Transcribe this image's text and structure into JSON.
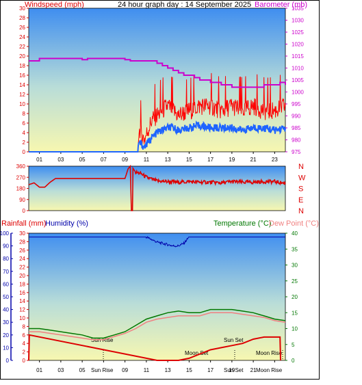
{
  "header": {
    "left_title": "Windspeed (mph)",
    "center_title": "24 hour graph day : 14 September 2025",
    "right_title": "Barometer (mb)"
  },
  "colors": {
    "wind": "#ff0000",
    "gust_fill": "#ff0000",
    "wind_avg": "#1e64ff",
    "barometer": "#cc00cc",
    "direction": "#dd0000",
    "humidity": "#0000aa",
    "temperature": "#007700",
    "dewpoint": "#f08080",
    "rainfall": "#dd0000",
    "bg_top": "#3f8ef0",
    "bg_bottom": "#f7f7b0"
  },
  "direction_labels": [
    "N",
    "W",
    "S",
    "E",
    "N"
  ],
  "bottom_header": {
    "rain_label": "Rainfall (mm)",
    "humidity_label": "Humidity (%)",
    "temp_label": "Temperature (°C)",
    "dew_label": "Dew Point (°C)"
  },
  "annotations": {
    "sunrise_top": "Sun Rise",
    "sunrise_axis": "Sun Rise",
    "sunset_top": "Sun Set",
    "sunset_axis": "Sun Set",
    "moonset": "Moon Set",
    "moonrise_top": "Moon Rise",
    "moonrise_axis": "Moon Rise"
  },
  "chart_data": [
    {
      "type": "line",
      "name_ref": "wind-barometer",
      "xlabel": "",
      "ylabel": "Windspeed (mph)",
      "x_ticks": [
        "01",
        "03",
        "05",
        "07",
        "09",
        "11",
        "13",
        "15",
        "17",
        "19",
        "21",
        "23"
      ],
      "y_left_ticks": [
        0,
        2,
        4,
        6,
        8,
        10,
        12,
        14,
        16,
        18,
        20,
        22,
        24,
        26,
        28,
        30
      ],
      "ylim_left": [
        0,
        30
      ],
      "y_right_ticks": [
        975,
        980,
        985,
        990,
        995,
        1000,
        1005,
        1010,
        1015,
        1020,
        1025,
        1030,
        1035
      ],
      "ylim_right": [
        975,
        1035
      ],
      "barometer": {
        "x": [
          0,
          0.5,
          1,
          1.5,
          2,
          3,
          4,
          5,
          5.5,
          6,
          7,
          8,
          9,
          9.5,
          10,
          11,
          12,
          12.5,
          13,
          13.5,
          14,
          14.5,
          15,
          15.5,
          16,
          17,
          18,
          18.5,
          19,
          20,
          21,
          22,
          23,
          23.5,
          24
        ],
        "y": [
          1013,
          1013,
          1014,
          1014,
          1014,
          1014,
          1014,
          1013.5,
          1014,
          1014,
          1014,
          1014,
          1013.5,
          1013,
          1013,
          1013,
          1012,
          1011,
          1010,
          1009,
          1008,
          1007,
          1007,
          1006,
          1005,
          1004,
          1003,
          1003,
          1002,
          1002,
          1002,
          1003,
          1003,
          1004,
          1003
        ]
      },
      "wind_gust_envelope": {
        "x": [
          0,
          10.2,
          10.3,
          10.8,
          11,
          11.5,
          12,
          12.5,
          13,
          13.5,
          14,
          15,
          16,
          17,
          18,
          19,
          20,
          21,
          22,
          23,
          24
        ],
        "y": [
          0,
          0,
          4,
          2,
          3,
          6,
          7,
          8,
          9,
          8,
          7,
          8,
          9,
          9,
          8,
          9,
          8,
          9,
          8,
          8,
          9
        ]
      },
      "wind_avg": {
        "x": [
          0,
          10.2,
          10.3,
          10.8,
          11,
          11.5,
          12,
          12.5,
          13,
          13.5,
          14,
          15,
          16,
          17,
          18,
          19,
          20,
          21,
          22,
          23,
          24
        ],
        "y": [
          0,
          0,
          2,
          1,
          1.5,
          3,
          4,
          4.5,
          5,
          5,
          4.5,
          5,
          5.5,
          5,
          5,
          5,
          4.5,
          5,
          5,
          4.5,
          5
        ]
      }
    },
    {
      "type": "line",
      "name_ref": "wind-direction",
      "y_ticks": [
        0,
        90,
        180,
        270,
        360
      ],
      "ylim": [
        0,
        360
      ],
      "series": [
        {
          "x": [
            0,
            0.5,
            1,
            1.5,
            2,
            2.5,
            9,
            9.3,
            9.5,
            9.6,
            9.7,
            10,
            10.5,
            11,
            12,
            13,
            14,
            15,
            16,
            17,
            18,
            19,
            20,
            21,
            22,
            23,
            24
          ],
          "y": [
            210,
            225,
            190,
            190,
            230,
            260,
            260,
            340,
            360,
            0,
            350,
            310,
            300,
            270,
            240,
            235,
            230,
            235,
            230,
            230,
            225,
            235,
            230,
            230,
            235,
            235,
            220
          ]
        }
      ]
    },
    {
      "type": "line",
      "name_ref": "temp-humidity-rain",
      "y_left_outer_ticks": [
        0,
        10,
        20,
        30,
        40,
        50,
        60,
        70,
        80,
        90,
        100
      ],
      "y_left_inner_ticks": [
        0,
        2,
        4,
        6,
        8,
        10,
        12,
        14,
        16,
        18,
        20,
        22,
        24,
        26,
        28,
        30
      ],
      "y_right_ticks": [
        0,
        5,
        10,
        15,
        20,
        25,
        30,
        35,
        40
      ],
      "ylim_temp": [
        0,
        40
      ],
      "ylim_humidity": [
        0,
        100
      ],
      "ylim_rain": [
        0,
        30
      ],
      "temperature": {
        "x": [
          0,
          1,
          2,
          3,
          4,
          5,
          6,
          7,
          8,
          9,
          10,
          11,
          12,
          13,
          14,
          15,
          16,
          17,
          18,
          19,
          20,
          21,
          22,
          23,
          24
        ],
        "y": [
          10,
          10,
          9.5,
          9,
          8.5,
          8,
          7,
          7,
          8,
          9,
          11,
          13,
          14,
          15,
          15.5,
          15,
          15,
          16,
          16,
          16,
          15.5,
          15,
          14,
          13,
          12.5
        ]
      },
      "dewpoint": {
        "x": [
          0,
          1,
          2,
          3,
          4,
          5,
          6,
          7,
          8,
          9,
          10,
          11,
          12,
          13,
          14,
          15,
          16,
          17,
          18,
          19,
          20,
          21,
          22,
          23,
          24
        ],
        "y": [
          9,
          9,
          8.5,
          8,
          7.5,
          7,
          6.5,
          6.5,
          7.5,
          8.5,
          10,
          12,
          13,
          13.5,
          14,
          14,
          14,
          15,
          15,
          15,
          14.5,
          14,
          13.5,
          12.5,
          12
        ]
      },
      "humidity": {
        "x": [
          0,
          10,
          11,
          11.5,
          12,
          12.5,
          13,
          13.5,
          14,
          14.5,
          15,
          24
        ],
        "y": [
          97,
          97,
          97,
          95,
          93,
          92,
          91,
          90,
          90,
          92,
          97,
          97
        ]
      },
      "rainfall": {
        "x": [
          0,
          0.05,
          12,
          13,
          14,
          15,
          16,
          17,
          18,
          19,
          20,
          21,
          22,
          23.5,
          23.55
        ],
        "y": [
          0,
          6,
          0,
          0,
          0,
          0.5,
          1.5,
          2.5,
          3,
          3.5,
          4,
          5,
          5.5,
          5.5,
          0
        ]
      }
    }
  ]
}
